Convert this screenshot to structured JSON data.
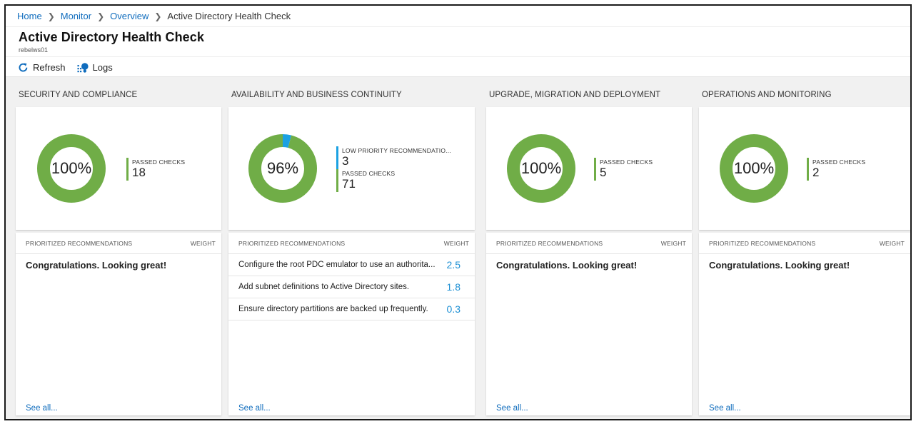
{
  "breadcrumb": {
    "items": [
      "Home",
      "Monitor",
      "Overview"
    ],
    "current": "Active Directory Health Check"
  },
  "header": {
    "title": "Active Directory Health Check",
    "subtitle": "rebelws01"
  },
  "toolbar": {
    "refresh_label": "Refresh",
    "logs_label": "Logs"
  },
  "colors": {
    "passed": "#70ad47",
    "low_priority": "#1ba1e2",
    "link": "#0f6cbd"
  },
  "rec_header": {
    "left": "PRIORITIZED RECOMMENDATIONS",
    "right": "WEIGHT"
  },
  "see_all_label": "See all...",
  "congrats_text": "Congratulations. Looking great!",
  "sections": [
    {
      "title": "SECURITY AND COMPLIANCE",
      "percent_label": "100%",
      "donut": {
        "passed": 18,
        "low_priority": 0
      },
      "legend": [
        {
          "label": "PASSED CHECKS",
          "value": "18",
          "kind": "passed"
        }
      ],
      "recommendations": []
    },
    {
      "title": "AVAILABILITY AND BUSINESS CONTINUITY",
      "percent_label": "96%",
      "donut": {
        "passed": 71,
        "low_priority": 3
      },
      "legend": [
        {
          "label": "LOW PRIORITY RECOMMENDATIO...",
          "value": "3",
          "kind": "low_priority"
        },
        {
          "label": "PASSED CHECKS",
          "value": "71",
          "kind": "passed"
        }
      ],
      "recommendations": [
        {
          "text": "Configure the root PDC emulator to use an authorita...",
          "weight": "2.5"
        },
        {
          "text": "Add subnet definitions to Active Directory sites.",
          "weight": "1.8"
        },
        {
          "text": "Ensure directory partitions are backed up frequently.",
          "weight": "0.3"
        }
      ]
    },
    {
      "title": "UPGRADE, MIGRATION AND DEPLOYMENT",
      "percent_label": "100%",
      "donut": {
        "passed": 5,
        "low_priority": 0
      },
      "legend": [
        {
          "label": "PASSED CHECKS",
          "value": "5",
          "kind": "passed"
        }
      ],
      "recommendations": []
    },
    {
      "title": "OPERATIONS AND MONITORING",
      "percent_label": "100%",
      "donut": {
        "passed": 2,
        "low_priority": 0
      },
      "legend": [
        {
          "label": "PASSED CHECKS",
          "value": "2",
          "kind": "passed"
        }
      ],
      "recommendations": []
    }
  ]
}
